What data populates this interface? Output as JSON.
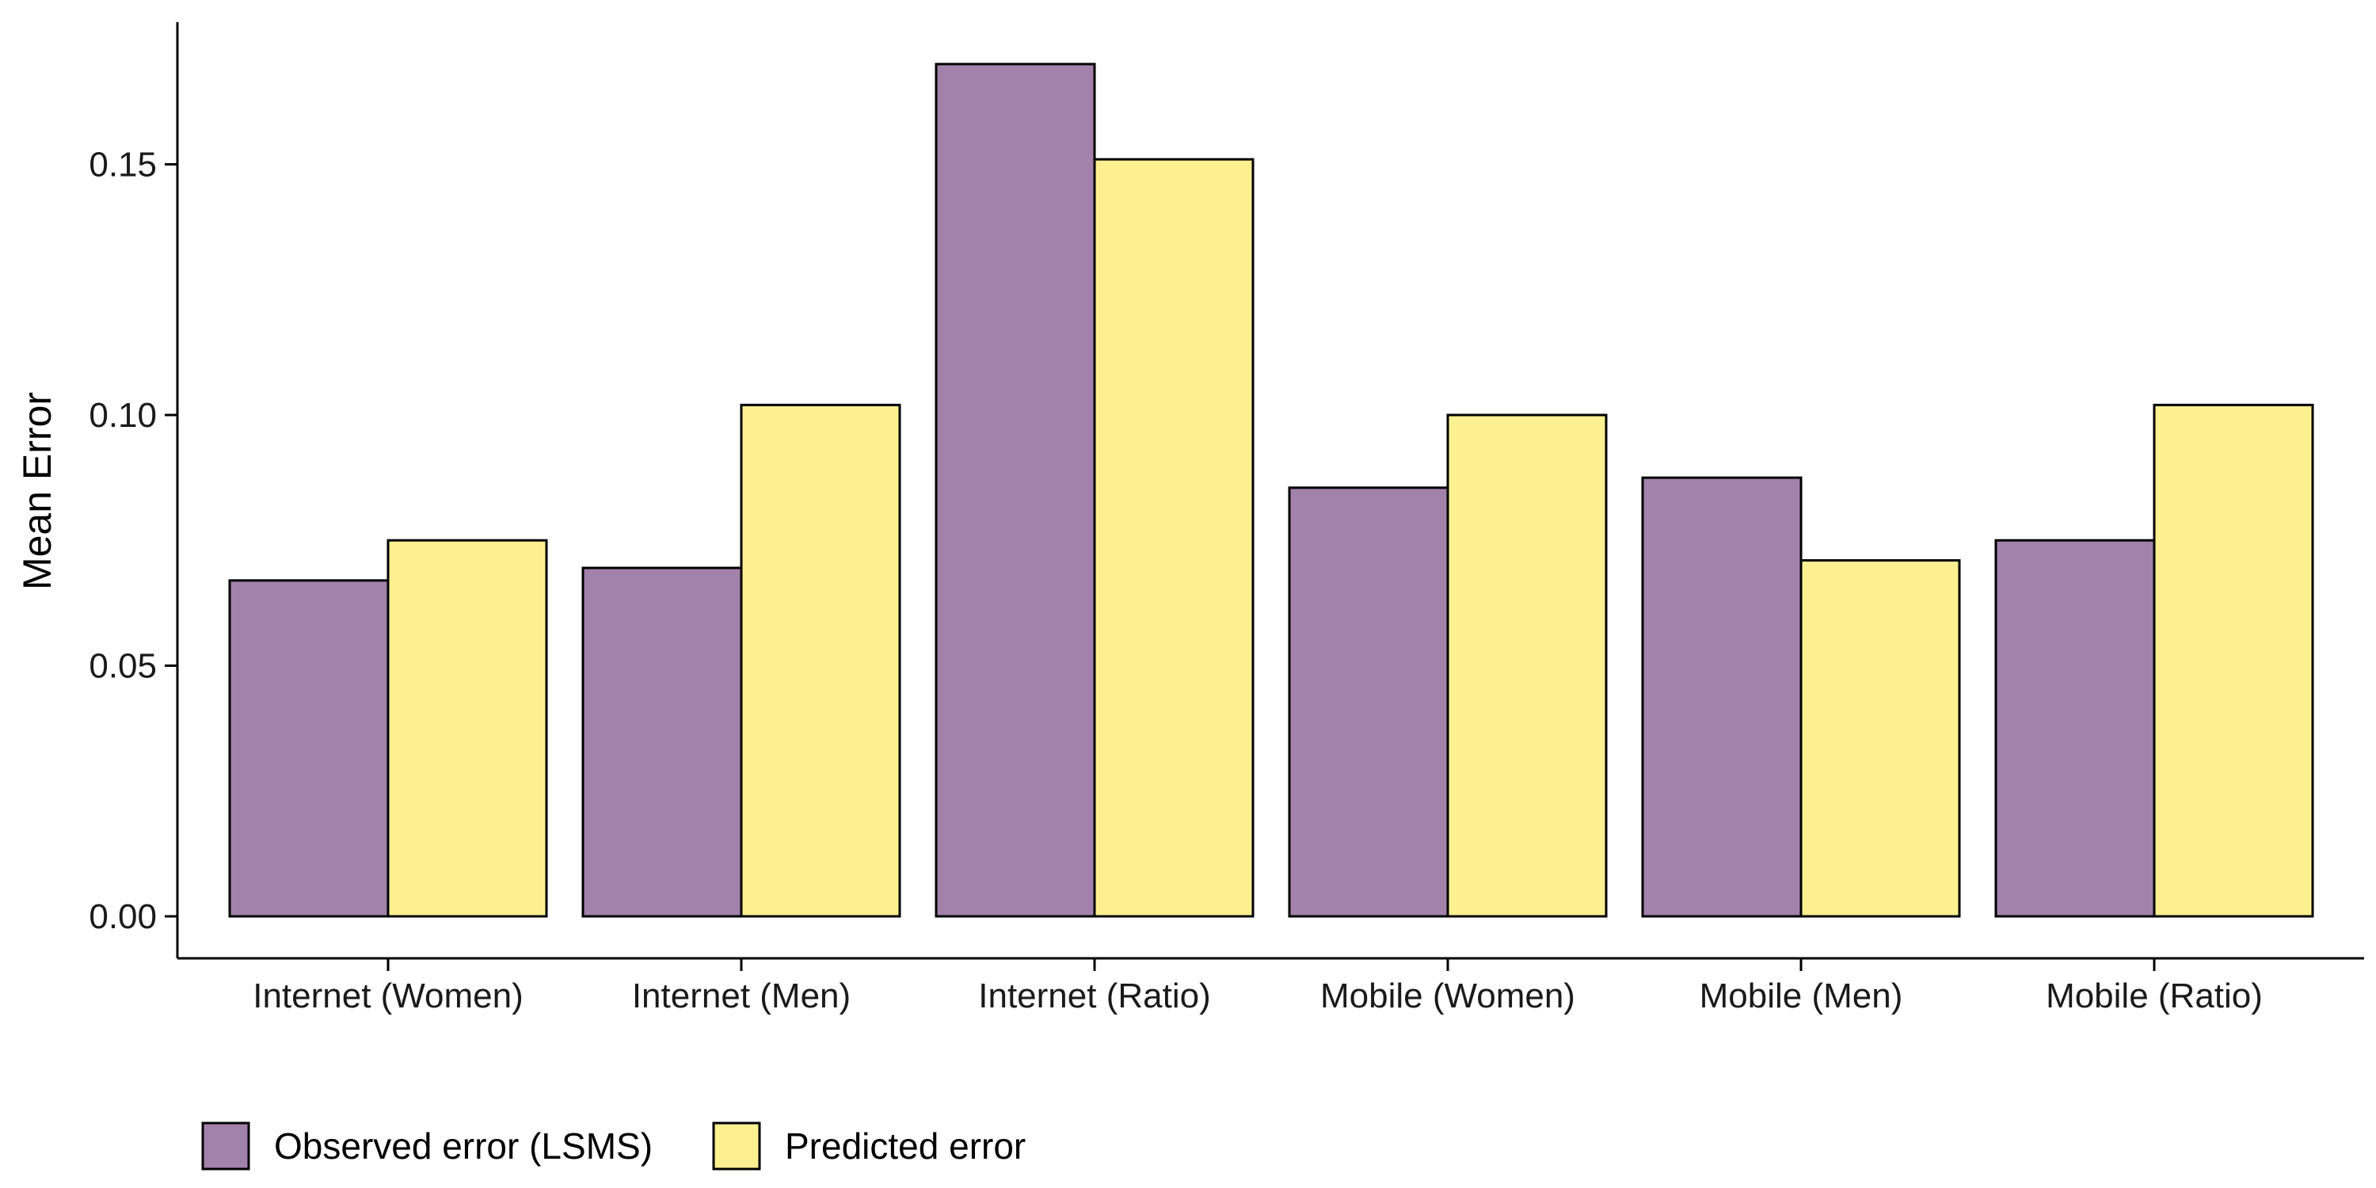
{
  "chart_data": {
    "type": "bar",
    "title": "",
    "xlabel": "",
    "ylabel": "Mean Error",
    "ylim": [
      0,
      0.175
    ],
    "yticks": [
      0.0,
      0.05,
      0.1,
      0.15
    ],
    "ytick_labels": [
      "0.00",
      "0.05",
      "0.10",
      "0.15"
    ],
    "grid": false,
    "legend_position": "bottom-left",
    "categories": [
      "Internet (Women)",
      "Internet (Men)",
      "Internet (Ratio)",
      "Mobile (Women)",
      "Mobile (Men)",
      "Mobile (Ratio)"
    ],
    "series": [
      {
        "name": "Observed error (LSMS)",
        "color": "#a281aa",
        "values": [
          0.067,
          0.0695,
          0.17,
          0.0855,
          0.0875,
          0.075
        ]
      },
      {
        "name": "Predicted error",
        "color": "#fcf091",
        "values": [
          0.075,
          0.102,
          0.151,
          0.1,
          0.071,
          0.102
        ]
      }
    ]
  }
}
